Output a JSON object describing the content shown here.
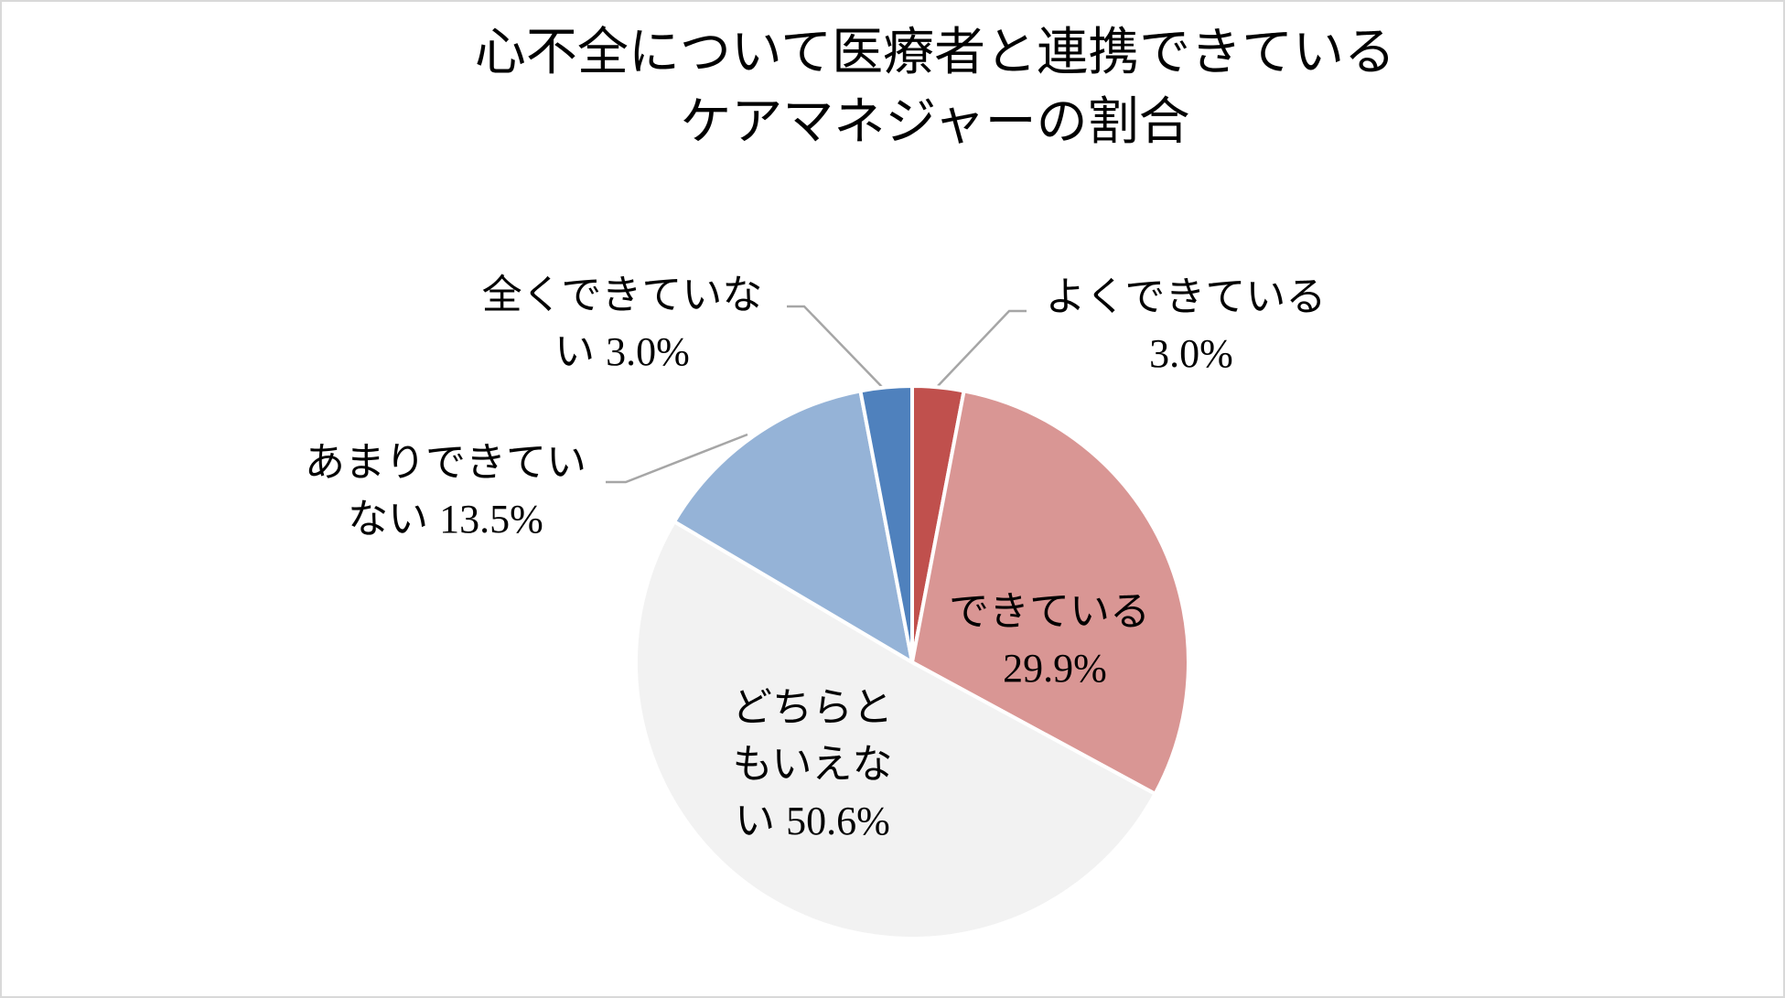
{
  "chart_data": {
    "type": "pie",
    "title": "心不全について医療者と連携できている\nケアマネジャーの割合",
    "categories": [
      "よくできている",
      "できている",
      "どちらともいえない",
      "あまりできていない",
      "全くできていない"
    ],
    "values": [
      3.0,
      29.9,
      50.6,
      13.5,
      3.0
    ],
    "value_labels": [
      "3.0%",
      "29.9%",
      "50.6%",
      "13.5%",
      "3.0%"
    ],
    "colors": [
      "#c0504d",
      "#d99694",
      "#f2f2f2",
      "#95b3d7",
      "#4f81bd"
    ]
  }
}
